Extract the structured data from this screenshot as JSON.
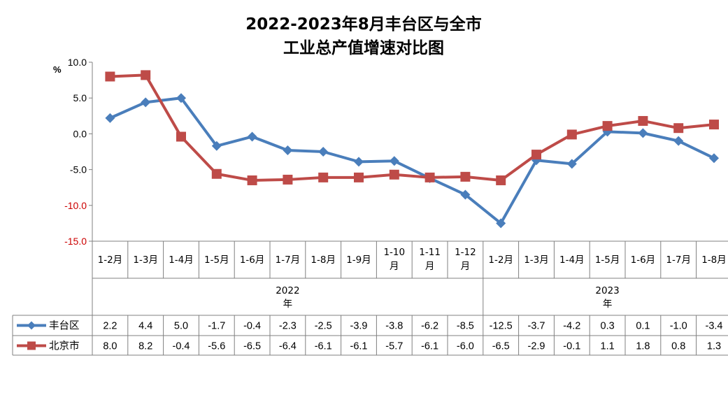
{
  "chart_data": {
    "type": "line",
    "title_lines": [
      "2022-2023年8月丰台区与全市",
      "工业总产值增速对比图"
    ],
    "ylabel": "%",
    "ylim": [
      -15,
      10
    ],
    "yticks": [
      "10.0",
      "5.0",
      "0.0",
      "-5.0",
      "-10.0",
      "-15.0"
    ],
    "ytick_values": [
      10,
      5,
      0,
      -5,
      -10,
      -15
    ],
    "ytick_colors": [
      "#000000",
      "#000000",
      "#000000",
      "#000000",
      "#cc0000",
      "#cc0000"
    ],
    "grid": false,
    "categories": [
      "1-2月",
      "1-3月",
      "1-4月",
      "1-5月",
      "1-6月",
      "1-7月",
      "1-8月",
      "1-9月",
      "1-10月",
      "1-11月",
      "1-12月",
      "1-2月",
      "1-3月",
      "1-4月",
      "1-5月",
      "1-6月",
      "1-7月",
      "1-8月"
    ],
    "category_lines": [
      [
        "1-2月"
      ],
      [
        "1-3月"
      ],
      [
        "1-4月"
      ],
      [
        "1-5月"
      ],
      [
        "1-6月"
      ],
      [
        "1-7月"
      ],
      [
        "1-8月"
      ],
      [
        "1-9月"
      ],
      [
        "1-10",
        "月"
      ],
      [
        "1-11",
        "月"
      ],
      [
        "1-12",
        "月"
      ],
      [
        "1-2月"
      ],
      [
        "1-3月"
      ],
      [
        "1-4月"
      ],
      [
        "1-5月"
      ],
      [
        "1-6月"
      ],
      [
        "1-7月"
      ],
      [
        "1-8月"
      ]
    ],
    "year_groups": [
      {
        "lines": [
          "2022",
          "年"
        ],
        "count": 11
      },
      {
        "lines": [
          "2023",
          "年"
        ],
        "count": 7
      }
    ],
    "series": [
      {
        "name": "丰台区",
        "color": "#4a7ebb",
        "marker": "diamond",
        "values": [
          2.2,
          4.4,
          5.0,
          -1.7,
          -0.4,
          -2.3,
          -2.5,
          -3.9,
          -3.8,
          -6.2,
          -8.5,
          -12.5,
          -3.7,
          -4.2,
          0.3,
          0.1,
          -1.0,
          -3.4
        ],
        "labels": [
          "2.2",
          "4.4",
          "5.0",
          "-1.7",
          "-0.4",
          "-2.3",
          "-2.5",
          "-3.9",
          "-3.8",
          "-6.2",
          "-8.5",
          "-12.5",
          "-3.7",
          "-4.2",
          "0.3",
          "0.1",
          "-1.0",
          "-3.4"
        ]
      },
      {
        "name": "北京市",
        "color": "#be4b48",
        "marker": "square",
        "values": [
          8.0,
          8.2,
          -0.4,
          -5.6,
          -6.5,
          -6.4,
          -6.1,
          -6.1,
          -5.7,
          -6.1,
          -6.0,
          -6.5,
          -2.9,
          -0.1,
          1.1,
          1.8,
          0.8,
          1.3
        ],
        "labels": [
          "8.0",
          "8.2",
          "-0.4",
          "-5.6",
          "-6.5",
          "-6.4",
          "-6.1",
          "-6.1",
          "-5.7",
          "-6.1",
          "-6.0",
          "-6.5",
          "-2.9",
          "-0.1",
          "1.1",
          "1.8",
          "0.8",
          "1.3"
        ]
      }
    ]
  }
}
